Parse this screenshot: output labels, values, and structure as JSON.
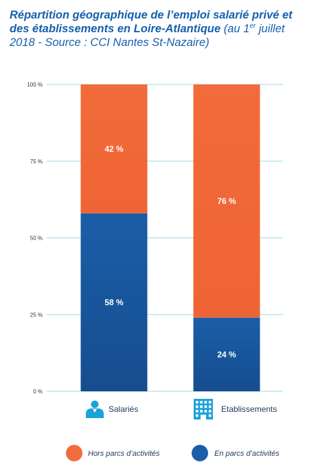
{
  "title": {
    "bold": "Répartition géographique de l’emploi salarié privé et des établissements en Loire-Atlantique",
    "normal_pre": " (au 1",
    "sup": "er",
    "normal_post": " juillet 2018 - Source : CCI Nantes St-Nazaire)"
  },
  "colors": {
    "orange": "#f26b3a",
    "blue": "#1a5ea8",
    "grid": "#9fd8e6",
    "title": "#1660ad",
    "icon": "#1aa3d8"
  },
  "chart_data": {
    "type": "bar",
    "stacked": true,
    "categories": [
      "Salariés",
      "Etablissements"
    ],
    "category_icons": [
      "person-icon",
      "building-icon"
    ],
    "series": [
      {
        "name": "En parcs d’activités",
        "values": [
          58,
          24
        ],
        "labels": [
          "58 %",
          "24 %"
        ],
        "color": "#1a5ea8"
      },
      {
        "name": "Hors parcs d’activités",
        "values": [
          42,
          76
        ],
        "labels": [
          "42 %",
          "76 %"
        ],
        "color": "#f26b3a"
      }
    ],
    "yticks": [
      0,
      25,
      50,
      75,
      100
    ],
    "ytick_labels": [
      "0 %",
      "25 %",
      "50 %",
      "75 %",
      "100 %"
    ],
    "ylim": [
      0,
      100
    ],
    "grid": true,
    "legend": {
      "position": "bottom",
      "entries": [
        "Hors parcs d’activités",
        "En parcs d’activités"
      ]
    }
  }
}
